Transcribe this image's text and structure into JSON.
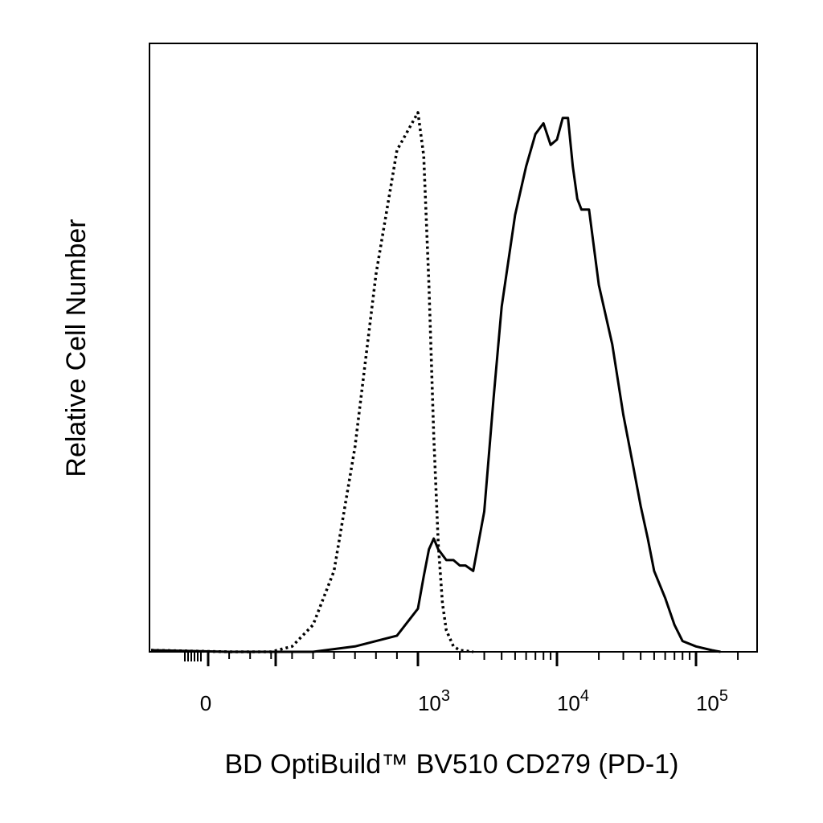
{
  "chart_data": {
    "type": "line",
    "title": "",
    "xlabel": "BD OptiBuild™ BV510 CD279 (PD-1)",
    "ylabel": "Relative Cell Number",
    "x_scale": "biexponential",
    "xlim": [
      -200,
      200000
    ],
    "ylim": [
      0,
      100
    ],
    "grid": false,
    "legend": "none",
    "x_ticks": [
      {
        "value": 0,
        "base": "0",
        "exp": ""
      },
      {
        "value": 1000,
        "base": "10",
        "exp": "3"
      },
      {
        "value": 10000,
        "base": "10",
        "exp": "4"
      },
      {
        "value": 100000,
        "base": "10",
        "exp": "5"
      }
    ],
    "series": [
      {
        "style": "dotted",
        "x": [
          100,
          300,
          400,
          500,
          600,
          700,
          800,
          900,
          1000,
          1100,
          1200,
          1300,
          1400,
          1500,
          1600,
          1800,
          2000,
          2500
        ],
        "y": [
          0,
          0,
          1,
          5,
          15,
          38,
          70,
          93,
          100,
          92,
          68,
          40,
          20,
          9,
          4,
          1,
          0.3,
          0
        ]
      },
      {
        "style": "solid",
        "x": [
          100,
          500,
          700,
          900,
          1000,
          1100,
          1200,
          1300,
          1400,
          1600,
          1800,
          2000,
          2200,
          2500,
          3000,
          3500,
          4000,
          5000,
          6000,
          7000,
          8000,
          9000,
          10000,
          11000,
          12000,
          13000,
          14000,
          15000,
          17000,
          20000,
          25000,
          30000,
          35000,
          40000,
          45000,
          50000,
          60000,
          70000,
          80000,
          100000,
          130000,
          150000
        ],
        "y": [
          0,
          0,
          1,
          3,
          8,
          14,
          19,
          21,
          19,
          17,
          17,
          16,
          16,
          15,
          26,
          47,
          64,
          81,
          90,
          96,
          98,
          94,
          95,
          99,
          99,
          90,
          84,
          82,
          82,
          68,
          57,
          44,
          35,
          27,
          21,
          15,
          10,
          5,
          2,
          1,
          0.3,
          0
        ]
      }
    ]
  }
}
